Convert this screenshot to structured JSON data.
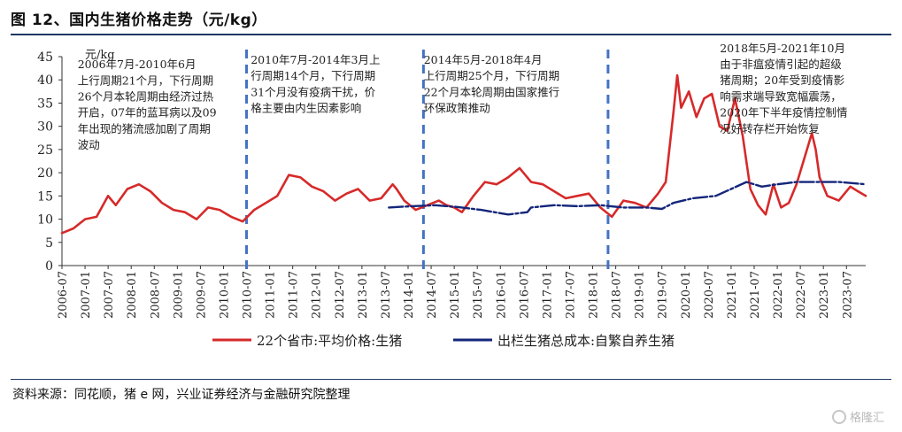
{
  "figure_title": "图 12、国内生猪价格走势（元/kg）",
  "source_note": "资料来源：同花顺，猪 e 网，兴业证券经济与金融研究院整理",
  "watermark": "格隆汇",
  "colors": {
    "price": "#d62a2a",
    "cost": "#14267a",
    "divider": "#4472c4",
    "rule": "#1f3864"
  },
  "chart_data": {
    "type": "line",
    "title": "国内生猪价格走势（元/kg）",
    "ylabel": "元/kg",
    "ylim": [
      0,
      45
    ],
    "yticks": [
      0,
      5,
      10,
      15,
      20,
      25,
      30,
      35,
      40,
      45
    ],
    "xlim": [
      "2006-07",
      "2023-12"
    ],
    "xticks": [
      "2006-07",
      "2007-01",
      "2007-07",
      "2008-01",
      "2008-07",
      "2009-01",
      "2009-07",
      "2010-01",
      "2010-07",
      "2011-01",
      "2011-07",
      "2012-01",
      "2012-07",
      "2013-01",
      "2013-07",
      "2014-01",
      "2014-07",
      "2015-01",
      "2015-07",
      "2016-01",
      "2016-07",
      "2017-01",
      "2017-07",
      "2018-01",
      "2018-07",
      "2019-01",
      "2019-07",
      "2020-01",
      "2020-07",
      "2021-01",
      "2021-07",
      "2022-01",
      "2022-07",
      "2023-01",
      "2023-07"
    ],
    "grid": false,
    "legend_position": "bottom",
    "series": [
      {
        "name": "22个省市:平均价格:生猪",
        "style": "solid",
        "points": [
          [
            "2006-07",
            7
          ],
          [
            "2006-10",
            8
          ],
          [
            "2007-01",
            10
          ],
          [
            "2007-04",
            10.5
          ],
          [
            "2007-07",
            15
          ],
          [
            "2007-09",
            13
          ],
          [
            "2007-12",
            16.5
          ],
          [
            "2008-03",
            17.5
          ],
          [
            "2008-06",
            16
          ],
          [
            "2008-09",
            13.5
          ],
          [
            "2008-12",
            12
          ],
          [
            "2009-03",
            11.5
          ],
          [
            "2009-06",
            10
          ],
          [
            "2009-09",
            12.5
          ],
          [
            "2009-12",
            12
          ],
          [
            "2010-03",
            10.5
          ],
          [
            "2010-06",
            9.5
          ],
          [
            "2010-09",
            12
          ],
          [
            "2010-12",
            13.5
          ],
          [
            "2011-03",
            15
          ],
          [
            "2011-06",
            19.5
          ],
          [
            "2011-09",
            19
          ],
          [
            "2011-12",
            17
          ],
          [
            "2012-03",
            16
          ],
          [
            "2012-06",
            14
          ],
          [
            "2012-09",
            15.5
          ],
          [
            "2012-12",
            16.5
          ],
          [
            "2013-03",
            14
          ],
          [
            "2013-06",
            14.5
          ],
          [
            "2013-09",
            17.5
          ],
          [
            "2013-10",
            16.5
          ],
          [
            "2013-12",
            14
          ],
          [
            "2014-03",
            12
          ],
          [
            "2014-06",
            13
          ],
          [
            "2014-09",
            14
          ],
          [
            "2014-11",
            13
          ],
          [
            "2015-01",
            12.5
          ],
          [
            "2015-03",
            11.5
          ],
          [
            "2015-06",
            15
          ],
          [
            "2015-09",
            18
          ],
          [
            "2015-12",
            17.5
          ],
          [
            "2016-03",
            19
          ],
          [
            "2016-06",
            21
          ],
          [
            "2016-09",
            18
          ],
          [
            "2016-12",
            17.5
          ],
          [
            "2017-03",
            16
          ],
          [
            "2017-06",
            14.5
          ],
          [
            "2017-09",
            15
          ],
          [
            "2017-12",
            15.5
          ],
          [
            "2018-03",
            12.5
          ],
          [
            "2018-06",
            10.5
          ],
          [
            "2018-09",
            14
          ],
          [
            "2018-12",
            13.5
          ],
          [
            "2019-03",
            12.5
          ],
          [
            "2019-06",
            15.5
          ],
          [
            "2019-08",
            18
          ],
          [
            "2019-10",
            33
          ],
          [
            "2019-11",
            41
          ],
          [
            "2019-12",
            34
          ],
          [
            "2020-02",
            37.5
          ],
          [
            "2020-04",
            32
          ],
          [
            "2020-06",
            36
          ],
          [
            "2020-08",
            37
          ],
          [
            "2020-10",
            30
          ],
          [
            "2020-12",
            29
          ],
          [
            "2021-02",
            36
          ],
          [
            "2021-04",
            28
          ],
          [
            "2021-06",
            16.5
          ],
          [
            "2021-08",
            13
          ],
          [
            "2021-10",
            11
          ],
          [
            "2021-12",
            17.5
          ],
          [
            "2022-02",
            12.5
          ],
          [
            "2022-04",
            13.5
          ],
          [
            "2022-06",
            17.5
          ],
          [
            "2022-08",
            23
          ],
          [
            "2022-10",
            28.5
          ],
          [
            "2022-11",
            25
          ],
          [
            "2022-12",
            19
          ],
          [
            "2023-02",
            15
          ],
          [
            "2023-05",
            14
          ],
          [
            "2023-08",
            17
          ],
          [
            "2023-10",
            16
          ],
          [
            "2023-12",
            15
          ]
        ]
      },
      {
        "name": "出栏生猪总成本:自繁自养生猪",
        "style": "dashed",
        "points": [
          [
            "2013-08",
            12.5
          ],
          [
            "2014-02",
            12.8
          ],
          [
            "2014-08",
            13
          ],
          [
            "2015-02",
            12.6
          ],
          [
            "2015-08",
            12
          ],
          [
            "2016-03",
            11
          ],
          [
            "2016-08",
            11.5
          ],
          [
            "2016-09",
            12.5
          ],
          [
            "2017-03",
            13
          ],
          [
            "2017-09",
            12.8
          ],
          [
            "2018-03",
            13
          ],
          [
            "2018-09",
            12.5
          ],
          [
            "2019-03",
            12.5
          ],
          [
            "2019-07",
            12.2
          ],
          [
            "2019-10",
            13.5
          ],
          [
            "2020-03",
            14.5
          ],
          [
            "2020-09",
            15
          ],
          [
            "2021-01",
            16.5
          ],
          [
            "2021-05",
            18
          ],
          [
            "2021-09",
            17
          ],
          [
            "2022-01",
            17.5
          ],
          [
            "2022-06",
            18
          ],
          [
            "2022-12",
            18
          ],
          [
            "2023-05",
            18
          ],
          [
            "2023-12",
            17.5
          ]
        ]
      }
    ],
    "dividers": [
      "2010-07",
      "2014-05",
      "2018-05"
    ],
    "annotations": [
      {
        "id": "cycle-1",
        "anchor": "2006-12",
        "y": 42.5,
        "lines": [
          "2006年7月-2010年6月",
          "上行周期21个月，下行周期",
          "26个月本轮周期由经济过热",
          "开启，07年的蓝耳病以及09",
          "年出现的猪流感加剧了周期",
          "波动"
        ]
      },
      {
        "id": "cycle-2",
        "anchor": "2010-09",
        "y": 43.5,
        "lines": [
          "2010年7月-2014年3月上",
          "行周期14个月，下行周期",
          "31个月没有疫病干扰，价",
          "格主要由内生因素影响"
        ]
      },
      {
        "id": "cycle-3",
        "anchor": "2014-06",
        "y": 43.5,
        "lines": [
          "2014年5月-2018年4月",
          "上行周期25个月，下行周期",
          "22个月本轮周期由国家推行",
          "环保政策推动"
        ]
      },
      {
        "id": "cycle-4",
        "anchor": "2020-11",
        "y": 46,
        "lines": [
          "2018年5月-2021年10月",
          "由于非瘟疫情引起的超级",
          "猪周期；20年受到疫情影",
          "响需求端导致宽幅震荡，",
          "2020年下半年疫情控制情",
          "况好转存栏开始恢复"
        ]
      }
    ]
  }
}
